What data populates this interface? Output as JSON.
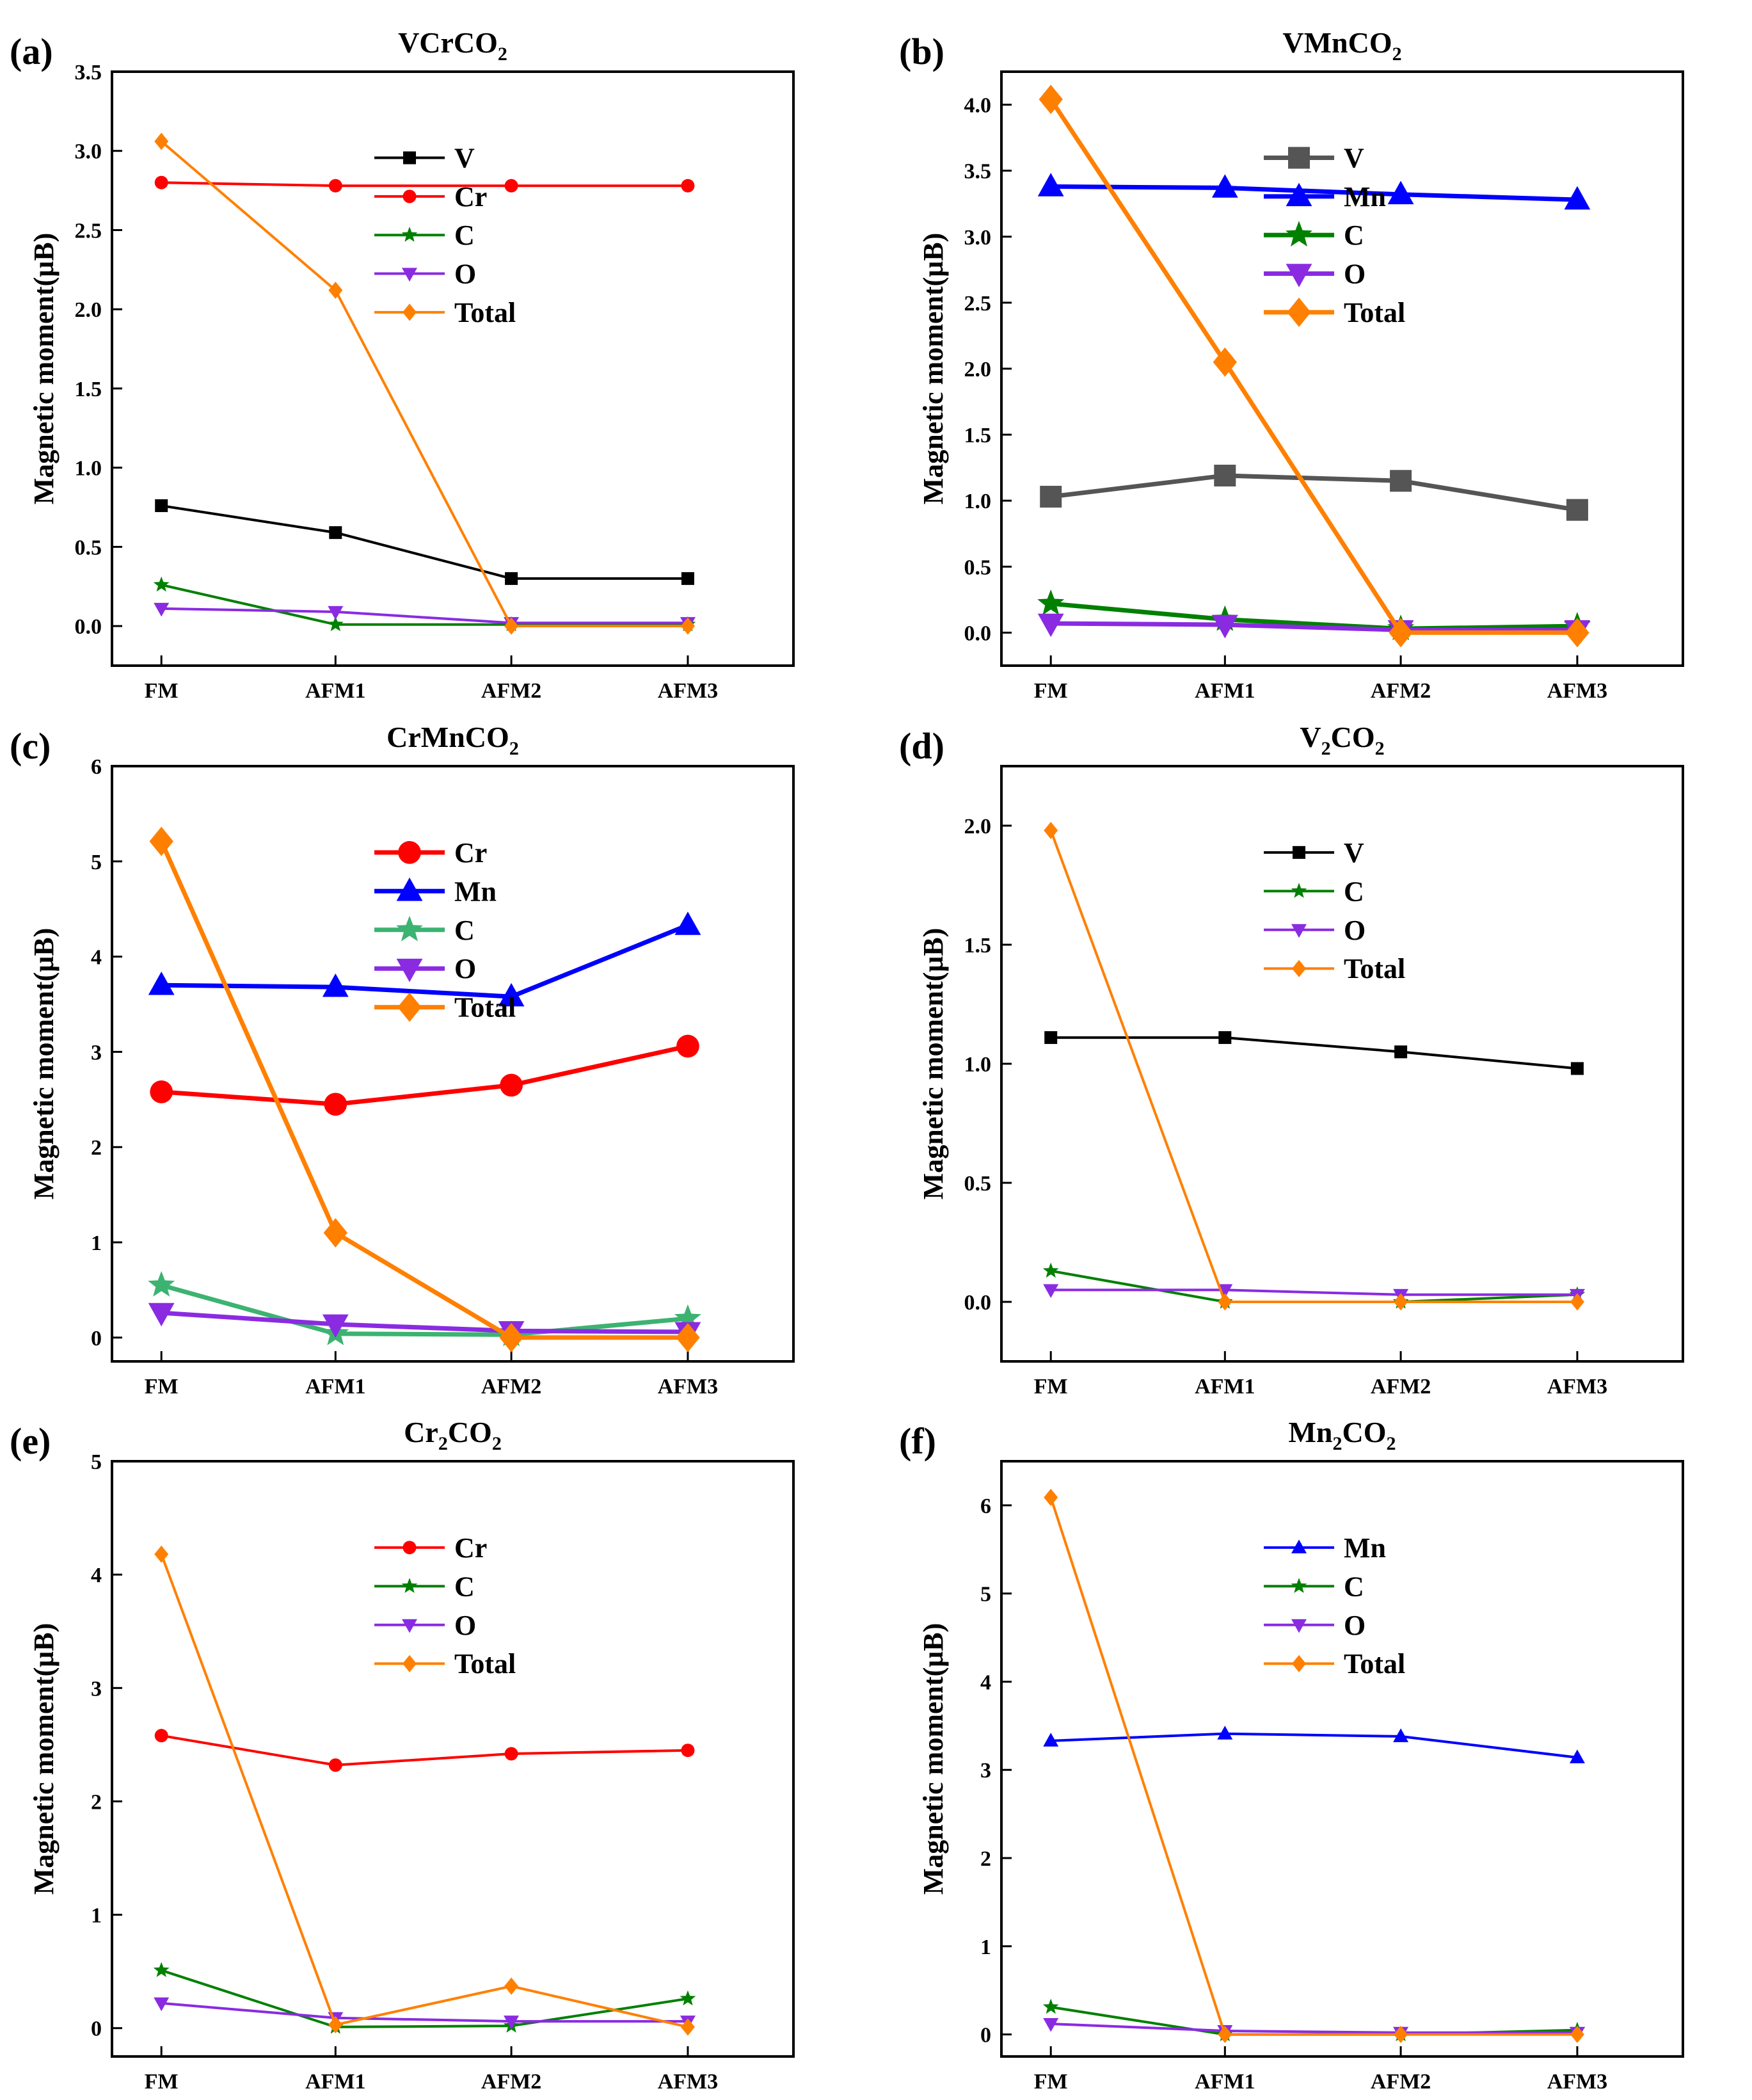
{
  "figure": {
    "ylabel": "Magnetic moment(μB)",
    "categories": [
      "FM",
      "AFM1",
      "AFM2",
      "AFM3"
    ]
  },
  "chart_data": [
    {
      "type": "line",
      "panel": "(a)",
      "title": "VCrCO",
      "title_sub": "2",
      "ylabel": "Magnetic moment(μB)",
      "categories": [
        "FM",
        "AFM1",
        "AFM2",
        "AFM3"
      ],
      "ylim": [
        -0.25,
        3.5
      ],
      "yticks": [
        0.0,
        0.5,
        1.0,
        1.5,
        2.0,
        2.5,
        3.0,
        3.5
      ],
      "ytick_labels": [
        "0.0",
        "0.5",
        "1.0",
        "1.5",
        "2.0",
        "2.5",
        "3.0",
        "3.5"
      ],
      "style": "thin",
      "legend_position": "right",
      "series": [
        {
          "name": "V",
          "color": "#000000",
          "marker": "square",
          "values": [
            0.76,
            0.59,
            0.3,
            0.3
          ]
        },
        {
          "name": "Cr",
          "color": "#ff0000",
          "marker": "circle",
          "values": [
            2.8,
            2.78,
            2.78,
            2.78
          ]
        },
        {
          "name": "C",
          "color": "#008000",
          "marker": "star",
          "values": [
            0.26,
            0.01,
            0.01,
            0.01
          ]
        },
        {
          "name": "O",
          "color": "#8a2be2",
          "marker": "triangle-down",
          "values": [
            0.11,
            0.09,
            0.02,
            0.02
          ]
        },
        {
          "name": "Total",
          "color": "#ff8000",
          "marker": "diamond",
          "values": [
            3.06,
            2.12,
            0.0,
            0.0
          ]
        }
      ]
    },
    {
      "type": "line",
      "panel": "(b)",
      "title": "VMnCO",
      "title_sub": "2",
      "ylabel": "Magnetic moment(μB)",
      "categories": [
        "FM",
        "AFM1",
        "AFM2",
        "AFM3"
      ],
      "ylim": [
        -0.25,
        4.25
      ],
      "yticks": [
        0.0,
        0.5,
        1.0,
        1.5,
        2.0,
        2.5,
        3.0,
        3.5,
        4.0
      ],
      "ytick_labels": [
        "0.0",
        "0.5",
        "1.0",
        "1.5",
        "2.0",
        "2.5",
        "3.0",
        "3.5",
        "4.0"
      ],
      "style": "thick",
      "legend_position": "right",
      "series": [
        {
          "name": "V",
          "color": "#555555",
          "marker": "square",
          "values": [
            1.03,
            1.19,
            1.15,
            0.93
          ]
        },
        {
          "name": "Mn",
          "color": "#0000ff",
          "marker": "triangle-up",
          "values": [
            3.38,
            3.37,
            3.32,
            3.28
          ]
        },
        {
          "name": "C",
          "color": "#008000",
          "marker": "star",
          "values": [
            0.22,
            0.1,
            0.03,
            0.05
          ]
        },
        {
          "name": "O",
          "color": "#8a2be2",
          "marker": "triangle-down",
          "values": [
            0.07,
            0.06,
            0.02,
            0.02
          ]
        },
        {
          "name": "Total",
          "color": "#ff8000",
          "marker": "diamond",
          "values": [
            4.04,
            2.05,
            0.0,
            0.0
          ]
        }
      ]
    },
    {
      "type": "line",
      "panel": "(c)",
      "title": "CrMnCO",
      "title_sub": "2",
      "ylabel": "Magnetic moment(μB)",
      "categories": [
        "FM",
        "AFM1",
        "AFM2",
        "AFM3"
      ],
      "ylim": [
        -0.25,
        6.0
      ],
      "yticks": [
        0,
        1,
        2,
        3,
        4,
        5,
        6
      ],
      "ytick_labels": [
        "0",
        "1",
        "2",
        "3",
        "4",
        "5",
        "6"
      ],
      "style": "thick",
      "legend_position": "right",
      "series": [
        {
          "name": "Cr",
          "color": "#ff0000",
          "marker": "circle",
          "values": [
            2.58,
            2.45,
            2.65,
            3.06
          ]
        },
        {
          "name": "Mn",
          "color": "#0000ff",
          "marker": "triangle-up",
          "values": [
            3.7,
            3.68,
            3.58,
            4.33
          ]
        },
        {
          "name": "C",
          "color": "#3cb371",
          "marker": "star",
          "values": [
            0.55,
            0.04,
            0.03,
            0.2
          ]
        },
        {
          "name": "O",
          "color": "#8a2be2",
          "marker": "triangle-down",
          "values": [
            0.26,
            0.14,
            0.07,
            0.06
          ]
        },
        {
          "name": "Total",
          "color": "#ff8000",
          "marker": "diamond",
          "values": [
            5.21,
            1.1,
            0.0,
            0.0
          ]
        }
      ]
    },
    {
      "type": "line",
      "panel": "(d)",
      "title": "V",
      "title_sub": "2",
      "title_tail": "CO",
      "title_sub2": "2",
      "ylabel": "Magnetic moment(μB)",
      "categories": [
        "FM",
        "AFM1",
        "AFM2",
        "AFM3"
      ],
      "ylim": [
        -0.25,
        2.25
      ],
      "yticks": [
        0.0,
        0.5,
        1.0,
        1.5,
        2.0
      ],
      "ytick_labels": [
        "0.0",
        "0.5",
        "1.0",
        "1.5",
        "2.0"
      ],
      "style": "thin",
      "legend_position": "right",
      "series": [
        {
          "name": "V",
          "color": "#000000",
          "marker": "square",
          "values": [
            1.11,
            1.11,
            1.05,
            0.98
          ]
        },
        {
          "name": "C",
          "color": "#008000",
          "marker": "star",
          "values": [
            0.13,
            0.0,
            0.0,
            0.03
          ]
        },
        {
          "name": "O",
          "color": "#8a2be2",
          "marker": "triangle-down",
          "values": [
            0.05,
            0.05,
            0.03,
            0.03
          ]
        },
        {
          "name": "Total",
          "color": "#ff8000",
          "marker": "diamond",
          "values": [
            1.98,
            0.0,
            0.0,
            0.0
          ]
        }
      ]
    },
    {
      "type": "line",
      "panel": "(e)",
      "title": "Cr",
      "title_sub": "2",
      "title_tail": "CO",
      "title_sub2": "2",
      "ylabel": "Magnetic moment(μB)",
      "categories": [
        "FM",
        "AFM1",
        "AFM2",
        "AFM3"
      ],
      "ylim": [
        -0.25,
        5.0
      ],
      "yticks": [
        0,
        1,
        2,
        3,
        4,
        5
      ],
      "ytick_labels": [
        "0",
        "1",
        "2",
        "3",
        "4",
        "5"
      ],
      "style": "thin",
      "legend_position": "right",
      "series": [
        {
          "name": "Cr",
          "color": "#ff0000",
          "marker": "circle",
          "values": [
            2.58,
            2.32,
            2.42,
            2.45
          ]
        },
        {
          "name": "C",
          "color": "#008000",
          "marker": "star",
          "values": [
            0.51,
            0.01,
            0.02,
            0.26
          ]
        },
        {
          "name": "O",
          "color": "#8a2be2",
          "marker": "triangle-down",
          "values": [
            0.22,
            0.09,
            0.06,
            0.06
          ]
        },
        {
          "name": "Total",
          "color": "#ff8000",
          "marker": "diamond",
          "values": [
            4.18,
            0.03,
            0.37,
            0.01
          ]
        }
      ]
    },
    {
      "type": "line",
      "panel": "(f)",
      "title": "Mn",
      "title_sub": "2",
      "title_tail": "CO",
      "title_sub2": "2",
      "ylabel": "Magnetic moment(μB)",
      "categories": [
        "FM",
        "AFM1",
        "AFM2",
        "AFM3"
      ],
      "ylim": [
        -0.25,
        6.5
      ],
      "yticks": [
        0,
        1,
        2,
        3,
        4,
        5,
        6
      ],
      "ytick_labels": [
        "0",
        "1",
        "2",
        "3",
        "4",
        "5",
        "6"
      ],
      "style": "thin",
      "legend_position": "right",
      "series": [
        {
          "name": "Mn",
          "color": "#0000ff",
          "marker": "triangle-up",
          "values": [
            3.33,
            3.41,
            3.38,
            3.14
          ]
        },
        {
          "name": "C",
          "color": "#008000",
          "marker": "star",
          "values": [
            0.31,
            0.0,
            0.0,
            0.05
          ]
        },
        {
          "name": "O",
          "color": "#8a2be2",
          "marker": "triangle-down",
          "values": [
            0.12,
            0.04,
            0.02,
            0.02
          ]
        },
        {
          "name": "Total",
          "color": "#ff8000",
          "marker": "diamond",
          "values": [
            6.09,
            0.0,
            0.0,
            0.0
          ]
        }
      ]
    }
  ]
}
